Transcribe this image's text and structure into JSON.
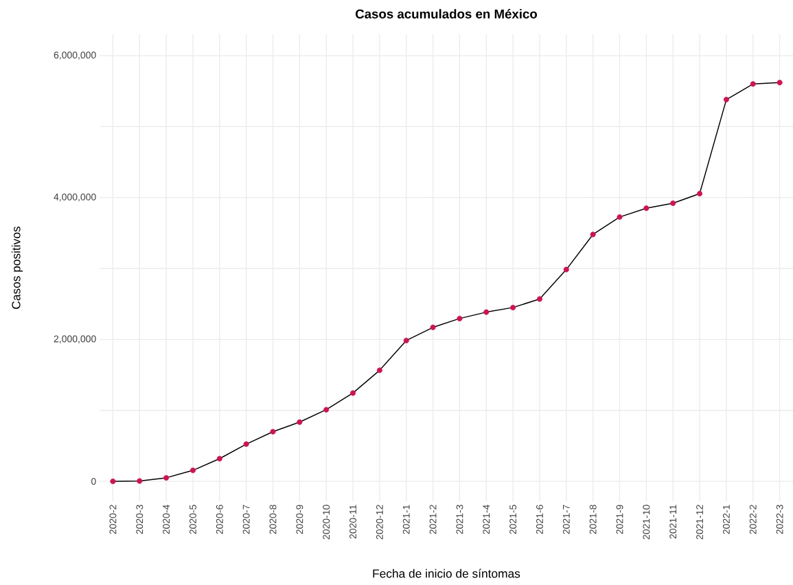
{
  "chart_data": {
    "type": "line",
    "title": "Casos acumulados en México",
    "xlabel": "Fecha de inicio de síntomas",
    "ylabel": "Casos positivos",
    "categories": [
      "2020-2",
      "2020-3",
      "2020-4",
      "2020-5",
      "2020-6",
      "2020-7",
      "2020-8",
      "2020-9",
      "2020-10",
      "2020-11",
      "2020-12",
      "2021-1",
      "2021-2",
      "2021-3",
      "2021-4",
      "2021-5",
      "2021-6",
      "2021-7",
      "2021-8",
      "2021-9",
      "2021-10",
      "2021-11",
      "2021-12",
      "2022-1",
      "2022-2",
      "2022-3"
    ],
    "series": [
      {
        "color": "#000000",
        "marker": "none",
        "line_style": "solid",
        "values": [
          0,
          5000,
          50000,
          155000,
          320000,
          525000,
          700000,
          835000,
          1010000,
          1245000,
          1565000,
          1985000,
          2170000,
          2295000,
          2385000,
          2450000,
          2570000,
          2985000,
          3480000,
          3725000,
          3850000,
          3920000,
          4055000,
          5380000,
          5600000,
          5620000
        ]
      },
      {
        "type": "scatter",
        "color": "#cc1452",
        "marker": "circle",
        "values": [
          0,
          5000,
          50000,
          155000,
          320000,
          525000,
          700000,
          835000,
          1010000,
          1245000,
          1565000,
          1985000,
          2170000,
          2295000,
          2385000,
          2450000,
          2570000,
          2985000,
          3480000,
          3725000,
          3850000,
          3920000,
          4055000,
          5380000,
          5600000,
          5620000
        ]
      }
    ],
    "ylim": [
      -280000,
      6300000
    ],
    "yticks": [
      {
        "value": 0,
        "label": "0"
      },
      {
        "value": 1000000,
        "label": null
      },
      {
        "value": 2000000,
        "label": "2,000,000"
      },
      {
        "value": 3000000,
        "label": null
      },
      {
        "value": 4000000,
        "label": "4,000,000"
      },
      {
        "value": 5000000,
        "label": null
      },
      {
        "value": 6000000,
        "label": "6,000,000"
      }
    ],
    "grid": true
  }
}
